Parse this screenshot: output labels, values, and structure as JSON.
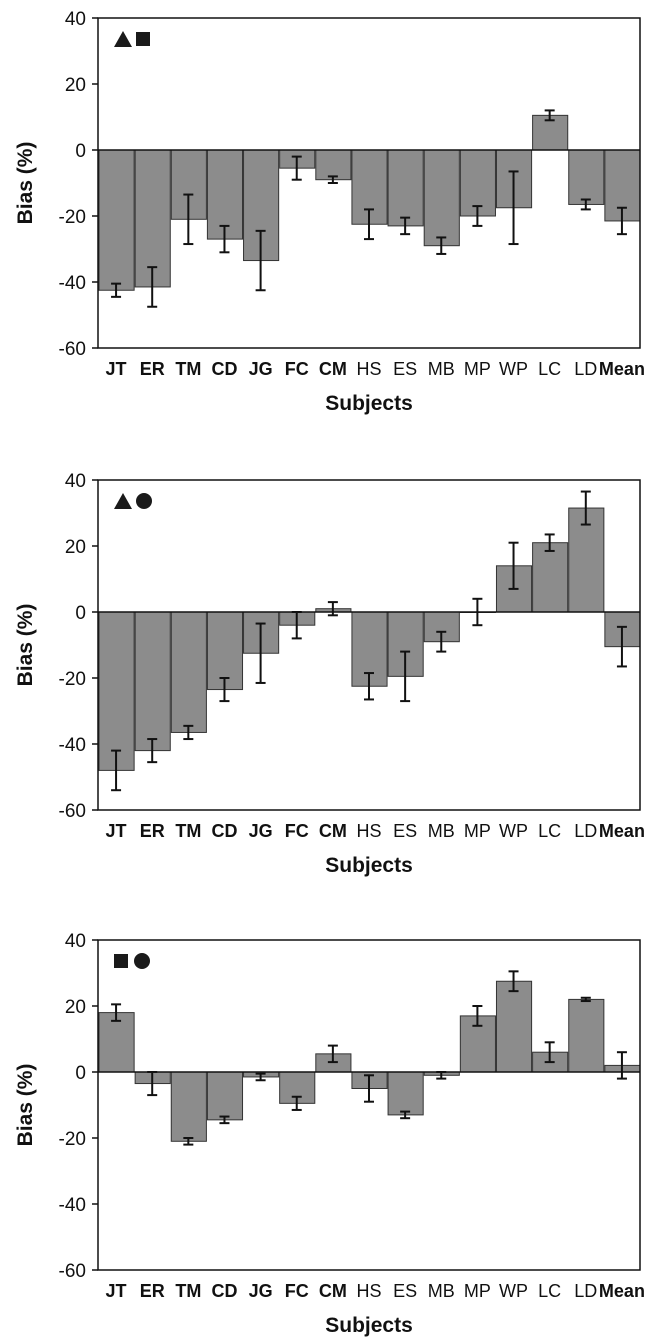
{
  "chart_data": [
    {
      "type": "bar",
      "categories": [
        "JT",
        "ER",
        "TM",
        "CD",
        "JG",
        "FC",
        "CM",
        "HS",
        "ES",
        "MB",
        "MP",
        "WP",
        "LC",
        "LD",
        "Mean"
      ],
      "bold_categories": [
        "JT",
        "ER",
        "TM",
        "CD",
        "JG",
        "FC",
        "CM",
        "Mean"
      ],
      "values": [
        -42.5,
        -41.5,
        -21,
        -27,
        -33.5,
        -5.5,
        -9,
        -22.5,
        -23,
        -29,
        -20,
        -17.5,
        10.5,
        -16.5,
        -21.5
      ],
      "errors": [
        2,
        6,
        7.5,
        4,
        9,
        3.5,
        1,
        4.5,
        2.5,
        2.5,
        3,
        11,
        1.5,
        1.5,
        4
      ],
      "legend_symbols": [
        "triangle",
        "square"
      ],
      "ylabel": "Bias (%)",
      "xlabel": "Subjects",
      "ylim": [
        -60,
        40
      ],
      "yticks": [
        40,
        20,
        0,
        -20,
        -40,
        -60
      ]
    },
    {
      "type": "bar",
      "categories": [
        "JT",
        "ER",
        "TM",
        "CD",
        "JG",
        "FC",
        "CM",
        "HS",
        "ES",
        "MB",
        "MP",
        "WP",
        "LC",
        "LD",
        "Mean"
      ],
      "bold_categories": [
        "JT",
        "ER",
        "TM",
        "CD",
        "JG",
        "FC",
        "CM",
        "Mean"
      ],
      "values": [
        -48,
        -42,
        -36.5,
        -23.5,
        -12.5,
        -4,
        1,
        -22.5,
        -19.5,
        -9,
        0,
        14,
        21,
        31.5,
        -10.5
      ],
      "errors": [
        6,
        3.5,
        2,
        3.5,
        9,
        4,
        2,
        4,
        7.5,
        3,
        4,
        7,
        2.5,
        5,
        6
      ],
      "legend_symbols": [
        "triangle",
        "circle"
      ],
      "ylabel": "Bias (%)",
      "xlabel": "Subjects",
      "ylim": [
        -60,
        40
      ],
      "yticks": [
        40,
        20,
        0,
        -20,
        -40,
        -60
      ]
    },
    {
      "type": "bar",
      "categories": [
        "JT",
        "ER",
        "TM",
        "CD",
        "JG",
        "FC",
        "CM",
        "HS",
        "ES",
        "MB",
        "MP",
        "WP",
        "LC",
        "LD",
        "Mean"
      ],
      "bold_categories": [
        "JT",
        "ER",
        "TM",
        "CD",
        "JG",
        "FC",
        "CM",
        "Mean"
      ],
      "values": [
        18,
        -3.5,
        -21,
        -14.5,
        -1.5,
        -9.5,
        5.5,
        -5,
        -13,
        -1,
        17,
        27.5,
        6,
        22,
        2
      ],
      "errors": [
        2.5,
        3.5,
        1,
        1,
        1,
        2,
        2.5,
        4,
        1,
        1,
        3,
        3,
        3,
        0.5,
        4
      ],
      "legend_symbols": [
        "square",
        "circle"
      ],
      "ylabel": "Bias (%)",
      "xlabel": "Subjects",
      "ylim": [
        -60,
        40
      ],
      "yticks": [
        40,
        20,
        0,
        -20,
        -40,
        -60
      ]
    }
  ],
  "colors": {
    "bar_fill": "#8c8c8c",
    "bar_stroke": "#333333",
    "axis": "#111111",
    "marker": "#1a1a1a"
  }
}
